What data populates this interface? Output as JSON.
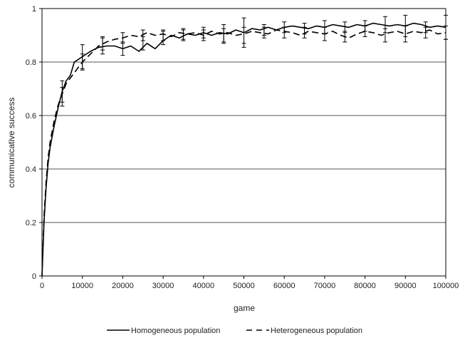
{
  "chart_data": {
    "type": "line",
    "title": "",
    "xlabel": "game",
    "ylabel": "communicative success",
    "xlim": [
      0,
      100000
    ],
    "ylim": [
      0,
      1
    ],
    "x_ticks": [
      0,
      10000,
      20000,
      30000,
      40000,
      50000,
      60000,
      70000,
      80000,
      90000,
      100000
    ],
    "y_ticks": [
      0,
      0.2,
      0.4,
      0.6,
      0.8,
      1
    ],
    "x_tick_labels": [
      "0",
      "10000",
      "20000",
      "30000",
      "40000",
      "50000",
      "60000",
      "70000",
      "80000",
      "90000",
      "100000"
    ],
    "y_tick_labels": [
      "0",
      "0.2",
      "0.4",
      "0.6",
      "0.8",
      "1"
    ],
    "grid": "horizontal",
    "legend_position": "bottom",
    "series": [
      {
        "name": "Homogeneous population",
        "style": "solid",
        "color": "#000000",
        "x": [
          0,
          500,
          1000,
          1500,
          2000,
          3000,
          4000,
          5000,
          6000,
          7000,
          8000,
          9000,
          10000,
          12000,
          14000,
          16000,
          18000,
          20000,
          22000,
          24000,
          26000,
          28000,
          30000,
          32000,
          34000,
          36000,
          38000,
          40000,
          42000,
          44000,
          46000,
          48000,
          50000,
          52000,
          54000,
          56000,
          58000,
          60000,
          62000,
          64000,
          66000,
          68000,
          70000,
          72000,
          74000,
          76000,
          78000,
          80000,
          82000,
          84000,
          86000,
          88000,
          90000,
          92000,
          94000,
          96000,
          98000,
          100000
        ],
        "y": [
          0.0,
          0.2,
          0.33,
          0.42,
          0.48,
          0.56,
          0.63,
          0.69,
          0.73,
          0.75,
          0.8,
          0.81,
          0.82,
          0.84,
          0.855,
          0.86,
          0.86,
          0.85,
          0.86,
          0.84,
          0.87,
          0.85,
          0.88,
          0.9,
          0.89,
          0.905,
          0.9,
          0.91,
          0.9,
          0.91,
          0.905,
          0.92,
          0.91,
          0.925,
          0.92,
          0.93,
          0.92,
          0.93,
          0.935,
          0.93,
          0.925,
          0.935,
          0.93,
          0.94,
          0.935,
          0.93,
          0.94,
          0.935,
          0.945,
          0.94,
          0.935,
          0.94,
          0.935,
          0.945,
          0.94,
          0.93,
          0.935,
          0.93
        ],
        "error_x": [
          5000,
          10000,
          15000,
          20000,
          25000,
          30000,
          35000,
          40000,
          45000,
          50000,
          55000,
          60000,
          65000,
          70000,
          75000,
          80000,
          85000,
          90000,
          95000,
          100000
        ],
        "error_y": [
          0.69,
          0.82,
          0.86,
          0.85,
          0.87,
          0.89,
          0.905,
          0.91,
          0.905,
          0.91,
          0.92,
          0.93,
          0.925,
          0.93,
          0.93,
          0.935,
          0.94,
          0.935,
          0.93,
          0.93
        ],
        "error_e": [
          0.04,
          0.045,
          0.03,
          0.025,
          0.025,
          0.025,
          0.02,
          0.02,
          0.035,
          0.055,
          0.02,
          0.02,
          0.02,
          0.025,
          0.02,
          0.02,
          0.03,
          0.04,
          0.02,
          0.045
        ]
      },
      {
        "name": "Heterogeneous population",
        "style": "dashed",
        "color": "#000000",
        "x": [
          0,
          500,
          1000,
          1500,
          2000,
          3000,
          4000,
          5000,
          6000,
          7000,
          8000,
          9000,
          10000,
          12000,
          14000,
          16000,
          18000,
          20000,
          22000,
          24000,
          26000,
          28000,
          30000,
          32000,
          34000,
          36000,
          38000,
          40000,
          42000,
          44000,
          46000,
          48000,
          50000,
          52000,
          54000,
          56000,
          58000,
          60000,
          62000,
          64000,
          66000,
          68000,
          70000,
          72000,
          74000,
          76000,
          78000,
          80000,
          82000,
          84000,
          86000,
          88000,
          90000,
          92000,
          94000,
          96000,
          98000,
          100000
        ],
        "y": [
          0.0,
          0.22,
          0.35,
          0.44,
          0.5,
          0.58,
          0.64,
          0.68,
          0.72,
          0.74,
          0.76,
          0.78,
          0.8,
          0.83,
          0.86,
          0.875,
          0.885,
          0.89,
          0.9,
          0.895,
          0.91,
          0.9,
          0.905,
          0.895,
          0.91,
          0.905,
          0.91,
          0.9,
          0.915,
          0.905,
          0.91,
          0.9,
          0.905,
          0.915,
          0.91,
          0.905,
          0.92,
          0.915,
          0.91,
          0.9,
          0.915,
          0.91,
          0.905,
          0.915,
          0.9,
          0.89,
          0.905,
          0.915,
          0.91,
          0.9,
          0.91,
          0.915,
          0.905,
          0.915,
          0.91,
          0.92,
          0.905,
          0.91
        ],
        "error_x": [
          5000,
          10000,
          15000,
          20000,
          25000,
          30000,
          35000,
          40000,
          45000,
          50000,
          55000,
          60000,
          65000,
          70000,
          75000,
          80000,
          85000,
          90000,
          95000,
          100000
        ],
        "error_y": [
          0.67,
          0.8,
          0.87,
          0.89,
          0.9,
          0.9,
          0.9,
          0.9,
          0.9,
          0.9,
          0.91,
          0.91,
          0.91,
          0.905,
          0.895,
          0.915,
          0.9,
          0.905,
          0.91,
          0.91
        ],
        "error_e": [
          0.035,
          0.03,
          0.025,
          0.02,
          0.02,
          0.02,
          0.02,
          0.02,
          0.025,
          0.03,
          0.02,
          0.02,
          0.02,
          0.025,
          0.02,
          0.02,
          0.025,
          0.03,
          0.02,
          0.025
        ]
      }
    ]
  }
}
